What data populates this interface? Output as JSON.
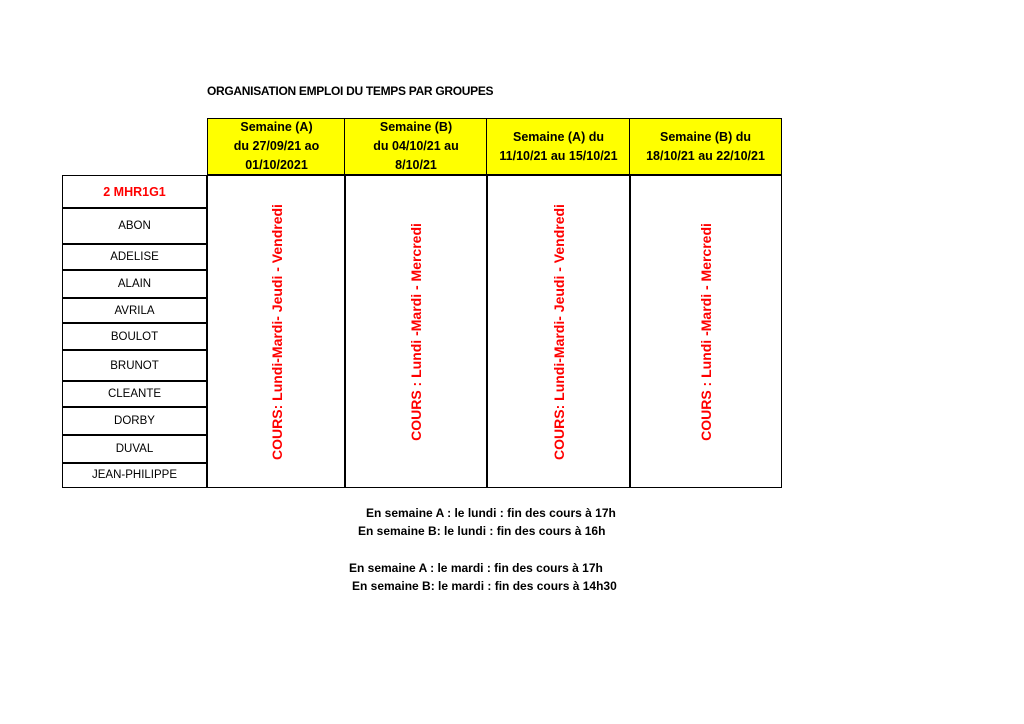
{
  "title": "ORGANISATION EMPLOI DU TEMPS PAR GROUPES",
  "weeks": [
    {
      "line1": "Semaine (A)",
      "line2": "du 27/09/21 ao",
      "line3": "01/10/2021",
      "courses": "COURS: Lundi-Mardi-  Jeudi - Vendredi"
    },
    {
      "line1": "Semaine (B)",
      "line2": "du 04/10/21 au",
      "line3": "8/10/21",
      "courses": "COURS : Lundi -Mardi - Mercredi"
    },
    {
      "line1": "Semaine (A)   du",
      "line2": "11/10/21 au 15/10/21",
      "line3": "",
      "courses": "COURS: Lundi-Mardi-  Jeudi - Vendredi"
    },
    {
      "line1": "Semaine (B)   du",
      "line2": "18/10/21 au 22/10/21",
      "line3": "",
      "courses": "COURS : Lundi -Mardi - Mercredi"
    }
  ],
  "group": "2 MHR1G1",
  "students": [
    "ABON",
    "ADELISE",
    "ALAIN",
    "AVRILA",
    "BOULOT",
    "BRUNOT",
    "CLEANTE",
    "DORBY",
    "DUVAL",
    "JEAN-PHILIPPE"
  ],
  "notes": [
    "En semaine A : le lundi : fin des cours à 17h",
    "En semaine B: le lundi : fin des cours à 16h",
    "En semaine A : le mardi : fin des cours à 17h",
    "En semaine B: le mardi : fin des cours à 14h30"
  ],
  "colors": {
    "header_bg": "#ffff00",
    "accent": "#ff0000"
  }
}
